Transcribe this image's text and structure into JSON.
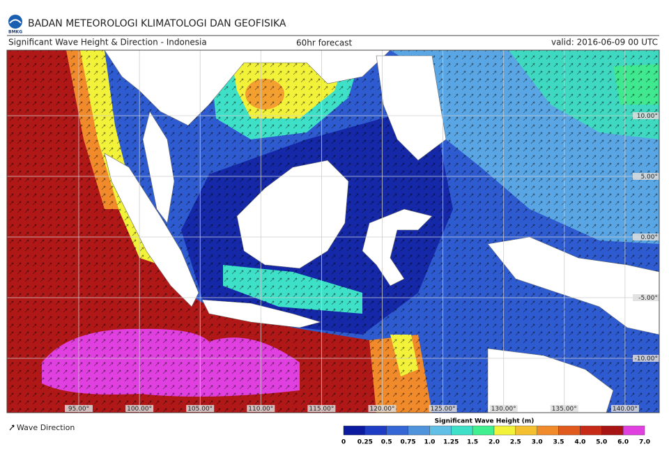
{
  "header": {
    "logo_text": "BMKG",
    "agency": "BADAN METEOROLOGI KLIMATOLOGI DAN GEOFISIKA"
  },
  "subheader": {
    "title": "Significant Wave Height & Direction - Indonesia",
    "forecast": "60hr forecast",
    "valid": "valid: 2016-06-09 00 UTC"
  },
  "map": {
    "longitude_labels": [
      "95.00°",
      "100.00°",
      "105.00°",
      "110.00°",
      "115.00°",
      "120.00°",
      "125.00°",
      "130.00°",
      "135.00°",
      "140.00°"
    ],
    "latitude_labels": [
      "10.00°",
      "5.00°",
      "0.00°",
      "-5.00°",
      "-10.00°"
    ]
  },
  "legend": {
    "direction_label": "Wave Direction",
    "colorbar_title": "Significant Wave Height (m)",
    "ticks": [
      "0",
      "0.25",
      "0.5",
      "0.75",
      "1.0",
      "1.25",
      "1.5",
      "2.0",
      "2.5",
      "3.0",
      "3.5",
      "4.0",
      "5.0",
      "6.0",
      "7.0"
    ],
    "colors": [
      "#0b1a9e",
      "#1f3cc4",
      "#3566d6",
      "#4f93dc",
      "#62bfe6",
      "#3fe0c8",
      "#40f090",
      "#f2f23a",
      "#f4c030",
      "#f08a2a",
      "#e05a1e",
      "#c82a18",
      "#a81414",
      "#e040e0"
    ]
  }
}
